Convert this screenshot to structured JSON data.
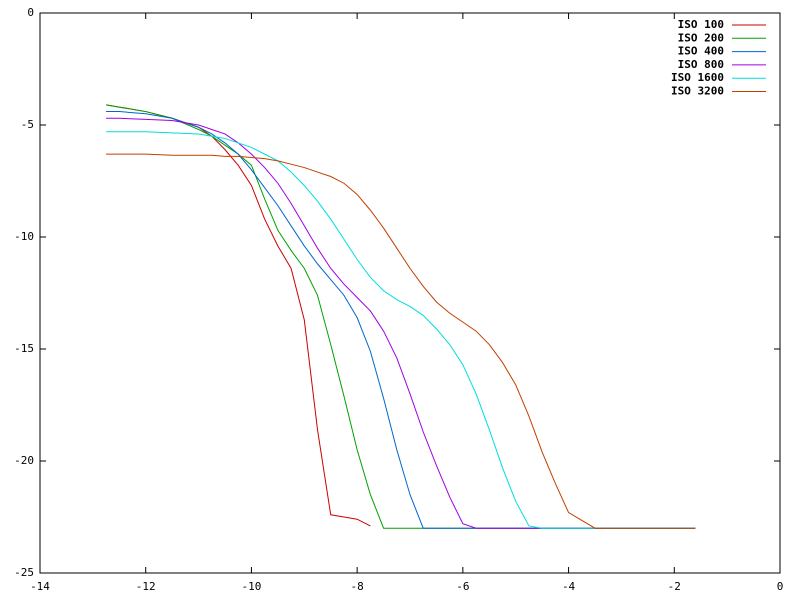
{
  "chart_data": {
    "type": "line",
    "x": [
      -12.75,
      -12.5,
      -12,
      -11.5,
      -11,
      -10.75,
      -10.5,
      -10.25,
      -10,
      -9.75,
      -9.5,
      -9.25,
      -9,
      -8.75,
      -8.5,
      -8.25,
      -8,
      -7.75,
      -7.5,
      -7.25,
      -7,
      -6.75,
      -6.5,
      -6.25,
      -6,
      -5.75,
      -5.5,
      -5.25,
      -5,
      -4.75,
      -4.5,
      -4.25,
      -4,
      -3.5,
      -3,
      -2.5,
      -2,
      -1.6
    ],
    "series": [
      {
        "name": "ISO 100",
        "color": "#cc0000",
        "values": [
          -4.1,
          -4.2,
          -4.4,
          -4.7,
          -5.1,
          -5.5,
          -6.1,
          -6.8,
          -7.7,
          -9.2,
          -10.4,
          -11.4,
          -13.7,
          -18.6,
          -22.4,
          -22.5,
          -22.6,
          -22.9,
          null,
          null,
          null,
          null,
          null,
          null,
          null,
          null,
          null,
          null,
          null,
          null,
          null,
          null,
          null,
          null,
          null,
          null,
          null,
          null
        ]
      },
      {
        "name": "ISO 200",
        "color": "#00a000",
        "values": [
          -4.1,
          -4.2,
          -4.4,
          -4.7,
          -5.2,
          -5.5,
          -5.9,
          -6.3,
          -6.8,
          -8.3,
          -9.7,
          -10.6,
          -11.4,
          -12.6,
          -14.8,
          -17.1,
          -19.5,
          -21.5,
          -23,
          -23,
          -23,
          -23,
          -23,
          -23,
          -23,
          -23,
          -23,
          -23,
          -23,
          -23,
          -23,
          -23,
          -23,
          -23,
          -23,
          -23,
          -23,
          -23
        ]
      },
      {
        "name": "ISO 400",
        "color": "#0066cc",
        "values": [
          -4.4,
          -4.4,
          -4.5,
          -4.7,
          -5.1,
          -5.4,
          -5.8,
          -6.3,
          -7.0,
          -7.8,
          -8.6,
          -9.5,
          -10.4,
          -11.2,
          -11.9,
          -12.6,
          -13.6,
          -15.1,
          -17.2,
          -19.5,
          -21.5,
          -23,
          -23,
          -23,
          -23,
          -23,
          -23,
          -23,
          -23,
          -23,
          -23,
          -23,
          -23,
          -23,
          -23,
          -23,
          -23,
          -23
        ]
      },
      {
        "name": "ISO 800",
        "color": "#a000e0",
        "values": [
          -4.7,
          -4.7,
          -4.75,
          -4.8,
          -5.0,
          -5.2,
          -5.4,
          -5.8,
          -6.3,
          -6.9,
          -7.6,
          -8.5,
          -9.5,
          -10.5,
          -11.4,
          -12.1,
          -12.7,
          -13.3,
          -14.2,
          -15.4,
          -17.0,
          -18.7,
          -20.2,
          -21.6,
          -22.8,
          -23,
          -23,
          -23,
          -23,
          -23,
          -23,
          -23,
          -23,
          -23,
          -23,
          -23,
          -23,
          -23
        ]
      },
      {
        "name": "ISO 1600",
        "color": "#00dddd",
        "values": [
          -5.3,
          -5.3,
          -5.3,
          -5.35,
          -5.4,
          -5.5,
          -5.6,
          -5.8,
          -6.0,
          -6.3,
          -6.6,
          -7.1,
          -7.7,
          -8.4,
          -9.2,
          -10.1,
          -11.0,
          -11.8,
          -12.4,
          -12.8,
          -13.1,
          -13.5,
          -14.1,
          -14.8,
          -15.7,
          -17.0,
          -18.6,
          -20.3,
          -21.8,
          -22.9,
          -23,
          -23,
          -23,
          -23,
          -23,
          -23,
          -23,
          -23
        ]
      },
      {
        "name": "ISO 3200",
        "color": "#c04000",
        "values": [
          -6.3,
          -6.3,
          -6.3,
          -6.35,
          -6.35,
          -6.35,
          -6.4,
          -6.4,
          -6.45,
          -6.5,
          -6.6,
          -6.75,
          -6.9,
          -7.1,
          -7.3,
          -7.6,
          -8.1,
          -8.8,
          -9.6,
          -10.5,
          -11.4,
          -12.2,
          -12.9,
          -13.4,
          -13.8,
          -14.2,
          -14.8,
          -15.6,
          -16.6,
          -18.0,
          -19.6,
          -21.0,
          -22.3,
          -23,
          -23,
          -23,
          -23,
          -23
        ]
      }
    ],
    "xlim": [
      -14,
      0
    ],
    "xticks": [
      -14,
      -12,
      -10,
      -8,
      -6,
      -4,
      -2,
      0
    ],
    "ylim": [
      -25,
      0
    ],
    "yticks": [
      -25,
      -20,
      -15,
      -10,
      -5,
      0
    ],
    "legend": "top-right"
  }
}
